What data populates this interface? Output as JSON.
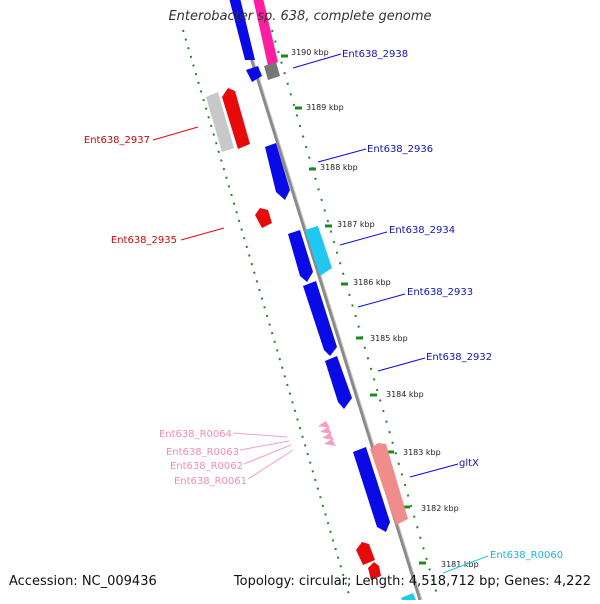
{
  "title": "Enterobacter sp. 638, complete genome",
  "footer": {
    "accession": "Accession: NC_009436",
    "summary": "Topology: circular; Length: 4,518,712 bp; Genes: 4,222"
  },
  "colors": {
    "backbone": "#8a8a8a",
    "ruler": "#1e8a1e",
    "cds_forward": "#0a0ae6",
    "cds_forward_light": "#20c8f0",
    "cds_reverse": "#e60a0a",
    "cds_reverse_light": "#f08c8c",
    "rna": "#f0a0c8",
    "hypothetical": "#c8c8c8",
    "pseudo": "#ff1ea0"
  },
  "kbp_labels": [
    "3190 kbp",
    "3189 kbp",
    "3188 kbp",
    "3187 kbp",
    "3186 kbp",
    "3185 kbp",
    "3184 kbp",
    "3183 kbp",
    "3182 kbp",
    "3181 kbp"
  ],
  "gene_labels": {
    "ent2938": "Ent638_2938",
    "ent2937": "Ent638_2937",
    "ent2936": "Ent638_2936",
    "ent2935": "Ent638_2935",
    "ent2934": "Ent638_2934",
    "ent2933": "Ent638_2933",
    "ent2932": "Ent638_2932",
    "r0064": "Ent638_R0064",
    "r0063": "Ent638_R0063",
    "r0062": "Ent638_R0062",
    "r0061": "Ent638_R0061",
    "gltx": "gltX",
    "r0060": "Ent638_R0060"
  }
}
